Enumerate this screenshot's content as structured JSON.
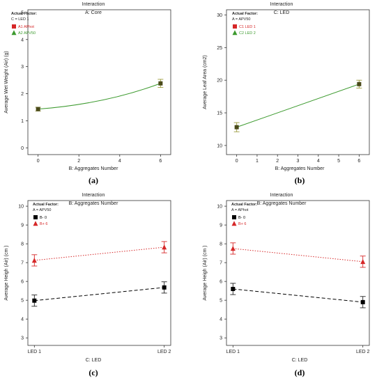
{
  "colors": {
    "green": "#3c9a2e",
    "red": "#d62728",
    "black": "#000000",
    "axis": "#333333",
    "errorbar_green": "#9a9a3a",
    "errorbar_red": "#d62728",
    "errorbar_black": "#222222"
  },
  "chart_data": [
    {
      "type": "line",
      "panel_label": "(a)",
      "title": "Interaction",
      "subtitle": "A: Core",
      "xlabel": "B: Aggregates Number",
      "ylabel": "Average Wet Weight (Air) (g)",
      "xlim": [
        -0.5,
        6.5
      ],
      "ylim": [
        -0.25,
        5.1
      ],
      "xticks": [
        "0",
        "2",
        "4",
        "6"
      ],
      "xtick_values": [
        0,
        2,
        4,
        6
      ],
      "yticks": [
        "0",
        "1",
        "2",
        "3",
        "4",
        "5"
      ],
      "ytick_values": [
        0,
        1,
        2,
        3,
        4,
        5
      ],
      "curve": "quadratic",
      "legend": {
        "title": "Actual Factor:",
        "subtitle": "C = LED 1",
        "items": [
          {
            "label": "A1 APhot",
            "marker": "square",
            "color": "#d62728"
          },
          {
            "label": "A2 APV50",
            "marker": "triangle",
            "color": "#3c9a2e"
          }
        ]
      },
      "series": [
        {
          "style": "solid",
          "color": "#3c9a2e",
          "marker": "square",
          "x": [
            0,
            6
          ],
          "y": [
            1.43,
            2.38
          ],
          "err": [
            0.07,
            0.15
          ]
        }
      ]
    },
    {
      "type": "line",
      "panel_label": "(b)",
      "title": "Interaction",
      "subtitle": "C: LED",
      "xlabel": "B: Aggregates Number",
      "ylabel": "Average Leaf Area (cm2)",
      "xlim": [
        -0.5,
        6.5
      ],
      "ylim": [
        8.6,
        30.8
      ],
      "xticks": [
        "0",
        "1",
        "2",
        "3",
        "4",
        "5",
        "6"
      ],
      "xtick_values": [
        0,
        1,
        2,
        3,
        4,
        5,
        6
      ],
      "yticks": [
        "10",
        "15",
        "20",
        "25",
        "30"
      ],
      "ytick_values": [
        10,
        15,
        20,
        25,
        30
      ],
      "curve": "linear",
      "legend": {
        "title": "Actual Factor:",
        "subtitle": "A = APV50",
        "items": [
          {
            "label": "C1 LED 1",
            "marker": "square",
            "color": "#d62728"
          },
          {
            "label": "C2 LED 2",
            "marker": "triangle",
            "color": "#3c9a2e"
          }
        ]
      },
      "series": [
        {
          "style": "solid",
          "color": "#3c9a2e",
          "marker": "square",
          "x": [
            0,
            6
          ],
          "y": [
            12.8,
            19.4
          ],
          "err": [
            0.7,
            0.6
          ]
        }
      ]
    },
    {
      "type": "line",
      "panel_label": "(c)",
      "title": "Interaction",
      "subtitle": "B: Aggregates Number",
      "xlabel": "C: LED",
      "ylabel": "Average Heigh (Air) (cm )",
      "xlim": [
        -0.05,
        1.05
      ],
      "ylim": [
        2.6,
        10.3
      ],
      "xticks": [
        "LED 1",
        "LED 2"
      ],
      "xtick_values": [
        0,
        1
      ],
      "yticks": [
        "3",
        "4",
        "5",
        "6",
        "7",
        "8",
        "9",
        "10"
      ],
      "ytick_values": [
        3,
        4,
        5,
        6,
        7,
        8,
        9,
        10
      ],
      "curve": "linear",
      "legend": {
        "title": "Actual Factor:",
        "subtitle": "A = APV50",
        "items": [
          {
            "label": "B- 0",
            "marker": "square",
            "color": "#000000"
          },
          {
            "label": "B+ 6",
            "marker": "triangle",
            "color": "#d62728"
          }
        ]
      },
      "series": [
        {
          "style": "dashed",
          "color": "#000000",
          "marker": "square",
          "x": [
            0,
            1
          ],
          "y": [
            4.98,
            5.68
          ],
          "err": [
            0.3,
            0.3
          ]
        },
        {
          "style": "dotted",
          "color": "#d62728",
          "marker": "triangle",
          "x": [
            0,
            1
          ],
          "y": [
            7.12,
            7.82
          ],
          "err": [
            0.3,
            0.3
          ]
        }
      ]
    },
    {
      "type": "line",
      "panel_label": "(d)",
      "title": "Interaction",
      "subtitle": "B: Aggregates Number",
      "xlabel": "C: LED",
      "ylabel": "Average Heigh (Air) (cm )",
      "xlim": [
        -0.05,
        1.05
      ],
      "ylim": [
        2.6,
        10.3
      ],
      "xticks": [
        "LED 1",
        "LED 2"
      ],
      "xtick_values": [
        0,
        1
      ],
      "yticks": [
        "3",
        "4",
        "5",
        "6",
        "7",
        "8",
        "9",
        "10"
      ],
      "ytick_values": [
        3,
        4,
        5,
        6,
        7,
        8,
        9,
        10
      ],
      "curve": "linear",
      "legend": {
        "title": "Actual Factor:",
        "subtitle": "A = APhot",
        "items": [
          {
            "label": "B- 0",
            "marker": "square",
            "color": "#000000"
          },
          {
            "label": "B+ 6",
            "marker": "triangle",
            "color": "#d62728"
          }
        ]
      },
      "series": [
        {
          "style": "dashed",
          "color": "#000000",
          "marker": "square",
          "x": [
            0,
            1
          ],
          "y": [
            5.6,
            4.9
          ],
          "err": [
            0.3,
            0.3
          ]
        },
        {
          "style": "dotted",
          "color": "#d62728",
          "marker": "triangle",
          "x": [
            0,
            1
          ],
          "y": [
            7.75,
            7.05
          ],
          "err": [
            0.3,
            0.3
          ]
        }
      ]
    }
  ]
}
